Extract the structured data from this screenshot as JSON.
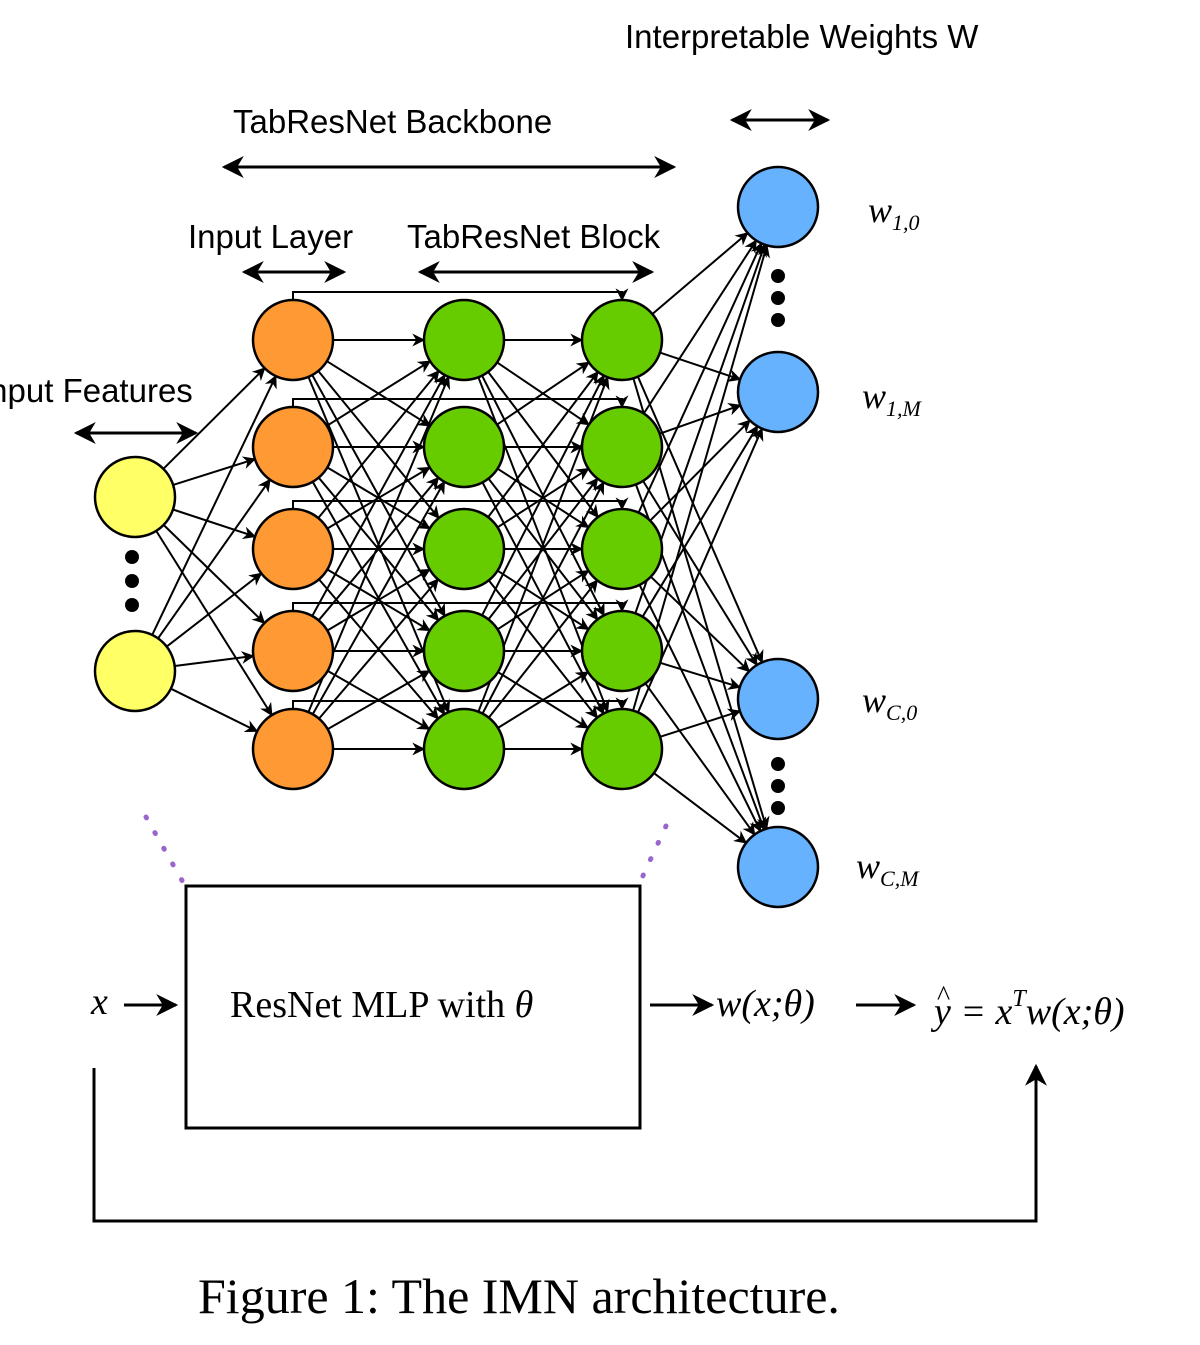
{
  "labels": {
    "weights_header": "Interpretable Weights W",
    "backbone_header": "TabResNet Backbone",
    "input_layer": "Input Layer",
    "block": "TabResNet Block",
    "input_features": "Input Features"
  },
  "weights": {
    "w10": {
      "base": "w",
      "sub": "1,0"
    },
    "w1M": {
      "base": "w",
      "sub": "1,M"
    },
    "wC0": {
      "base": "w",
      "sub": "C,0"
    },
    "wCM": {
      "base": "w",
      "sub": "C,M"
    }
  },
  "pipeline": {
    "input": "x",
    "box_text": "ResNet MLP with",
    "box_theta": "θ",
    "w_output": "w(x;θ)",
    "y_hat_base": "y",
    "y_hat_accent": "^",
    "eq_lhs": " = x",
    "eq_sup": "T",
    "eq_rhs": "w(x;θ)"
  },
  "caption": "Figure 1: The IMN architecture.",
  "colors": {
    "input_node": "#ffff66",
    "input_layer_node": "#ff9933",
    "block_node": "#66cc00",
    "weight_node": "#66b2ff",
    "stroke": "#000000",
    "dotted_connector": "#9966cc"
  }
}
